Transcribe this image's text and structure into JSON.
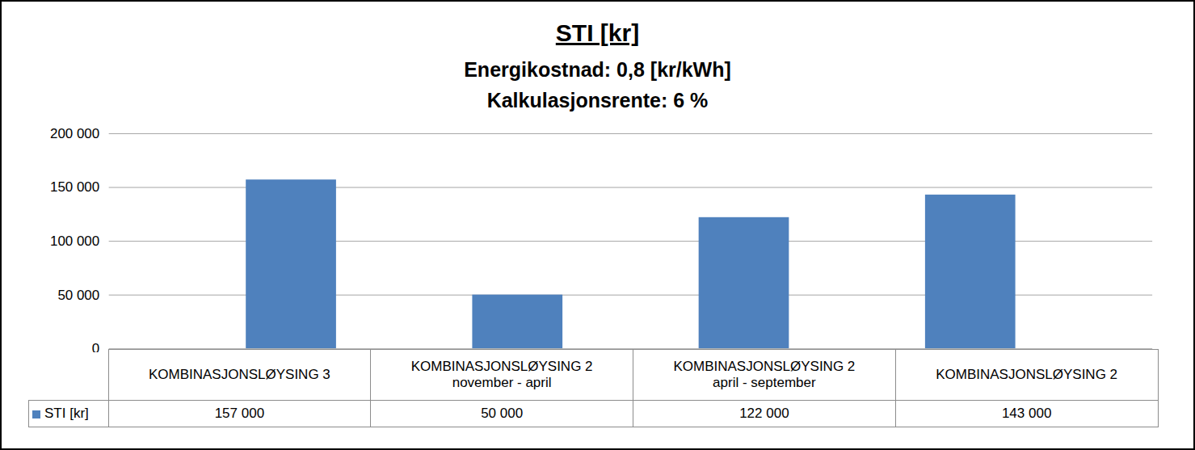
{
  "chart_data": {
    "type": "bar",
    "title": "STI [kr]",
    "subtitle": [
      "Energikostnad: 0,8 [kr/kWh]",
      "Kalkulasjonsrente: 6 %"
    ],
    "categories": [
      "KOMBINASJONSLØYSING 3",
      "KOMBINASJONSLØYSING 2\nnovember - april",
      "KOMBINASJONSLØYSING 2\napril - september",
      "KOMBINASJONSLØYSING 2"
    ],
    "series": [
      {
        "name": "STI [kr]",
        "color": "#4f81bd",
        "values": [
          157000,
          50000,
          122000,
          143000
        ],
        "value_labels": [
          "157 000",
          "50 000",
          "122 000",
          "143 000"
        ]
      }
    ],
    "ylim": [
      0,
      200000
    ],
    "yticks": [
      0,
      {
        "value": 50000,
        "label": "50 000"
      },
      {
        "value": 100000,
        "label": "100 000"
      },
      {
        "value": 150000,
        "label": "150 000"
      },
      {
        "value": 200000,
        "label": "200 000"
      }
    ],
    "grid": true,
    "data_labels": true,
    "legend": "bottom-left"
  }
}
